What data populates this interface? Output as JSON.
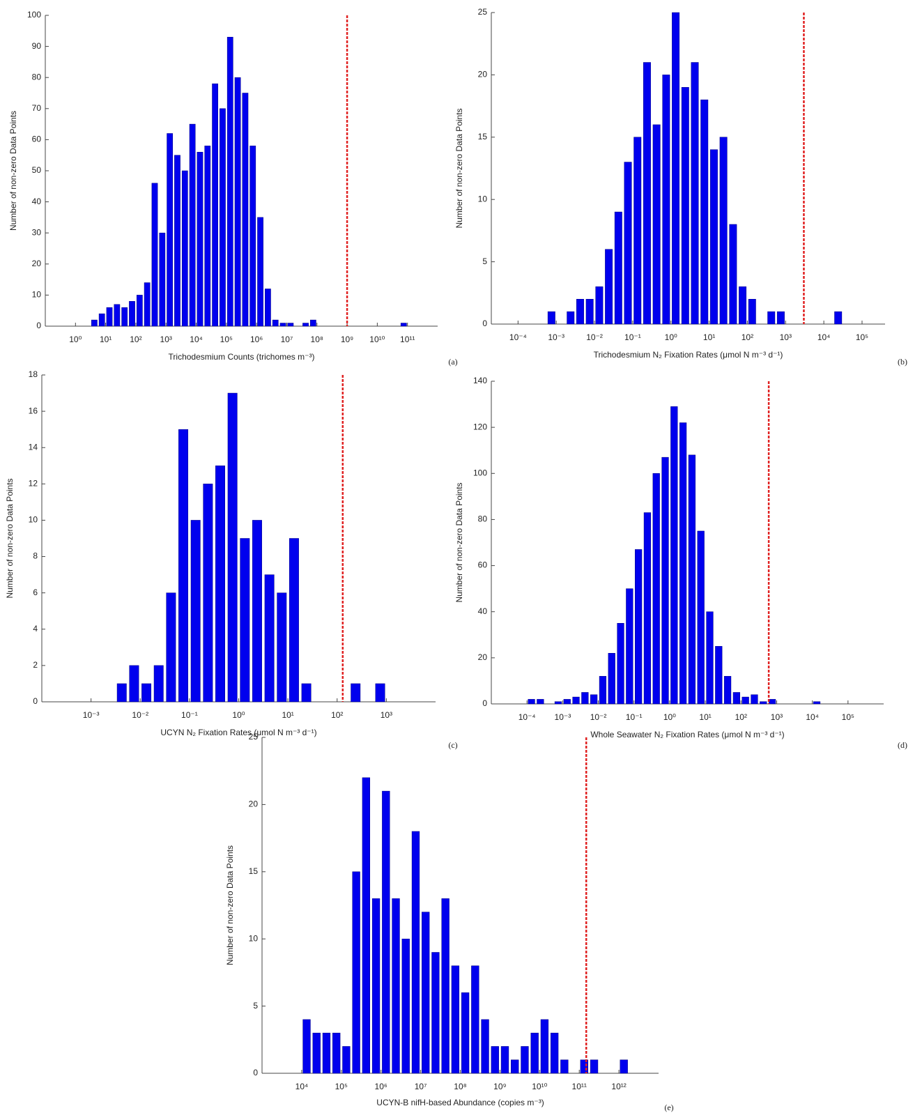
{
  "chart_data": [
    {
      "type": "histogram",
      "panel_label": "(a)",
      "xlabel": "Trichodesmium Counts (trichomes m⁻³)",
      "ylabel": "Number of non-zero Data Points",
      "xscale": "log",
      "color": "#0000ee",
      "xlim": [
        0.1,
        1000000000000.0
      ],
      "ylim": [
        0,
        100
      ],
      "xticks": [
        {
          "value": 1,
          "label": "10⁰"
        },
        {
          "value": 10,
          "label": "10¹"
        },
        {
          "value": 100.0,
          "label": "10²"
        },
        {
          "value": 1000.0,
          "label": "10³"
        },
        {
          "value": 10000.0,
          "label": "10⁴"
        },
        {
          "value": 100000.0,
          "label": "10⁵"
        },
        {
          "value": 1000000.0,
          "label": "10⁶"
        },
        {
          "value": 10000000.0,
          "label": "10⁷"
        },
        {
          "value": 100000000.0,
          "label": "10⁸"
        },
        {
          "value": 1000000000.0,
          "label": "10⁹"
        },
        {
          "value": 10000000000.0,
          "label": "10¹⁰"
        },
        {
          "value": 100000000000.0,
          "label": "10¹¹"
        }
      ],
      "yticks": [
        0,
        10,
        20,
        30,
        40,
        50,
        60,
        70,
        80,
        90,
        100
      ],
      "vline": {
        "x": 1000000000.0,
        "color": "#e02020"
      },
      "bins": [
        3.162,
        5.623,
        10.0,
        17.78,
        31.62,
        56.23,
        100.0,
        177.8,
        316.2,
        562.3,
        1000.0,
        1778.0,
        3162.0,
        5623.0,
        10000.0,
        17780.0,
        31620.0,
        56230.0,
        100000.0,
        177800.0,
        316200.0,
        562300.0,
        1000000.0,
        1778000.0,
        3162000.0,
        5623000.0,
        10000000.0,
        17780000.0,
        31620000.0,
        56230000.0,
        100000000.0,
        177800000.0,
        316200000.0,
        562300000.0,
        1000000000.0,
        1778000000.0,
        3162000000.0,
        5623000000.0,
        10000000000.0,
        17780000000.0,
        31620000000.0,
        56230000000.0,
        100000000000.0
      ],
      "values": [
        2,
        4,
        6,
        7,
        6,
        8,
        10,
        14,
        46,
        30,
        62,
        55,
        50,
        65,
        56,
        58,
        78,
        70,
        93,
        80,
        75,
        58,
        35,
        12,
        2,
        1,
        1,
        0,
        1,
        2,
        0,
        0,
        0,
        0,
        0,
        0,
        0,
        0,
        0,
        0,
        0,
        1
      ]
    },
    {
      "type": "histogram",
      "panel_label": "(b)",
      "xlabel": "Trichodesmium N₂ Fixation Rates (μmol N m⁻³ d⁻¹)",
      "ylabel": "Number of non-zero Data Points",
      "xscale": "log",
      "color": "#0000ee",
      "xlim": [
        2e-05,
        400000.0
      ],
      "ylim": [
        0,
        25
      ],
      "xticks": [
        {
          "value": 0.0001,
          "label": "10⁻⁴"
        },
        {
          "value": 0.001,
          "label": "10⁻³"
        },
        {
          "value": 0.01,
          "label": "10⁻²"
        },
        {
          "value": 0.1,
          "label": "10⁻¹"
        },
        {
          "value": 1,
          "label": "10⁰"
        },
        {
          "value": 10,
          "label": "10¹"
        },
        {
          "value": 100.0,
          "label": "10²"
        },
        {
          "value": 1000.0,
          "label": "10³"
        },
        {
          "value": 10000.0,
          "label": "10⁴"
        },
        {
          "value": 100000.0,
          "label": "10⁵"
        }
      ],
      "yticks": [
        0,
        5,
        10,
        15,
        20,
        25
      ],
      "vline": {
        "x": 3000.0,
        "color": "#e02020"
      },
      "bins": [
        0.0003162,
        0.0005623,
        0.001,
        0.001778,
        0.003162,
        0.005623,
        0.01,
        0.01778,
        0.03162,
        0.05623,
        0.1,
        0.1778,
        0.3162,
        0.5623,
        1,
        1.778,
        3.162,
        5.623,
        10.0,
        17.78,
        31.62,
        56.23,
        100.0,
        177.8,
        316.2,
        562.3,
        1000.0,
        1778.0,
        3162.0,
        5623.0,
        10000.0,
        17780.0,
        31620.0
      ],
      "values": [
        0,
        1,
        0,
        1,
        2,
        2,
        3,
        6,
        9,
        13,
        15,
        21,
        16,
        20,
        25,
        19,
        21,
        18,
        14,
        15,
        8,
        3,
        2,
        0,
        1,
        1,
        0,
        0,
        0,
        0,
        0,
        1
      ]
    },
    {
      "type": "histogram",
      "panel_label": "(c)",
      "xlabel": "UCYN N₂ Fixation Rates (μmol N m⁻³ d⁻¹)",
      "ylabel": "Number of non-zero Data Points",
      "xscale": "log",
      "color": "#0000ee",
      "xlim": [
        0.0001,
        10000.0
      ],
      "ylim": [
        0,
        18
      ],
      "xticks": [
        {
          "value": 0.001,
          "label": "10⁻³"
        },
        {
          "value": 0.01,
          "label": "10⁻²"
        },
        {
          "value": 0.1,
          "label": "10⁻¹"
        },
        {
          "value": 1,
          "label": "10⁰"
        },
        {
          "value": 10,
          "label": "10¹"
        },
        {
          "value": 100.0,
          "label": "10²"
        },
        {
          "value": 1000.0,
          "label": "10³"
        }
      ],
      "yticks": [
        0,
        2,
        4,
        6,
        8,
        10,
        12,
        14,
        16,
        18
      ],
      "vline": {
        "x": 130.0,
        "color": "#e02020"
      },
      "bins": [
        0.003162,
        0.005623,
        0.01,
        0.01778,
        0.03162,
        0.05623,
        0.1,
        0.1778,
        0.3162,
        0.5623,
        1,
        1.778,
        3.162,
        5.623,
        10.0,
        17.78,
        31.62,
        56.23,
        100.0,
        177.8,
        316.2,
        562.3,
        1000.0
      ],
      "values": [
        1,
        2,
        1,
        2,
        6,
        15,
        10,
        12,
        13,
        17,
        9,
        10,
        7,
        6,
        9,
        1,
        0,
        0,
        0,
        1,
        0,
        1
      ]
    },
    {
      "type": "histogram",
      "panel_label": "(d)",
      "xlabel": "Whole Seawater N₂ Fixation Rates (μmol N m⁻³ d⁻¹)",
      "ylabel": "Number of non-zero Data Points",
      "xscale": "log",
      "color": "#0000ee",
      "xlim": [
        1e-05,
        1000000.0
      ],
      "ylim": [
        0,
        140
      ],
      "xticks": [
        {
          "value": 0.0001,
          "label": "10⁻⁴"
        },
        {
          "value": 0.001,
          "label": "10⁻³"
        },
        {
          "value": 0.01,
          "label": "10⁻²"
        },
        {
          "value": 0.1,
          "label": "10⁻¹"
        },
        {
          "value": 1,
          "label": "10⁰"
        },
        {
          "value": 10,
          "label": "10¹"
        },
        {
          "value": 100.0,
          "label": "10²"
        },
        {
          "value": 1000.0,
          "label": "10³"
        },
        {
          "value": 10000.0,
          "label": "10⁴"
        },
        {
          "value": 100000.0,
          "label": "10⁵"
        }
      ],
      "yticks": [
        0,
        20,
        40,
        60,
        80,
        100,
        120,
        140
      ],
      "vline": {
        "x": 600.0,
        "color": "#e02020"
      },
      "bins": [
        0.0001,
        0.0001778,
        0.0003162,
        0.0005623,
        0.001,
        0.001778,
        0.003162,
        0.005623,
        0.01,
        0.01778,
        0.03162,
        0.05623,
        0.1,
        0.1778,
        0.3162,
        0.5623,
        1,
        1.778,
        3.162,
        5.623,
        10.0,
        17.78,
        31.62,
        56.23,
        100.0,
        177.8,
        316.2,
        562.3,
        1000.0,
        1778.0,
        3162.0,
        5623.0,
        10000.0,
        17780.0
      ],
      "values": [
        2,
        2,
        0,
        1,
        2,
        3,
        5,
        4,
        12,
        22,
        35,
        50,
        67,
        83,
        100,
        107,
        129,
        122,
        108,
        75,
        40,
        25,
        12,
        5,
        3,
        4,
        1,
        2,
        0,
        0,
        0,
        0,
        1
      ]
    },
    {
      "type": "histogram",
      "panel_label": "(e)",
      "xlabel": "UCYN-B nifH-based Abundance (copies m⁻³)",
      "ylabel": "Number of non-zero Data Points",
      "xscale": "log",
      "color": "#0000ee",
      "xlim": [
        1000.0,
        10000000000000.0
      ],
      "ylim": [
        0,
        25
      ],
      "xticks": [
        {
          "value": 10000.0,
          "label": "10⁴"
        },
        {
          "value": 100000.0,
          "label": "10⁵"
        },
        {
          "value": 1000000.0,
          "label": "10⁶"
        },
        {
          "value": 10000000.0,
          "label": "10⁷"
        },
        {
          "value": 100000000.0,
          "label": "10⁸"
        },
        {
          "value": 1000000000.0,
          "label": "10⁹"
        },
        {
          "value": 10000000000.0,
          "label": "10¹⁰"
        },
        {
          "value": 100000000000.0,
          "label": "10¹¹"
        },
        {
          "value": 1000000000000.0,
          "label": "10¹²"
        }
      ],
      "yticks": [
        0,
        5,
        10,
        15,
        20,
        25
      ],
      "vline": {
        "x": 150000000000.0,
        "color": "#e02020"
      },
      "bins": [
        10000.0,
        17780.0,
        31620.0,
        56230.0,
        100000.0,
        177800.0,
        316200.0,
        562300.0,
        1000000.0,
        1778000.0,
        3162000.0,
        5623000.0,
        10000000.0,
        17780000.0,
        31620000.0,
        56230000.0,
        100000000.0,
        177800000.0,
        316200000.0,
        562300000.0,
        1000000000.0,
        1778000000.0,
        3162000000.0,
        5623000000.0,
        10000000000.0,
        17780000000.0,
        31620000000.0,
        56230000000.0,
        100000000000.0,
        177800000000.0,
        316200000000.0,
        562300000000.0,
        1000000000000.0,
        1778000000000.0
      ],
      "values": [
        4,
        3,
        3,
        3,
        2,
        15,
        22,
        13,
        21,
        13,
        10,
        18,
        12,
        9,
        13,
        8,
        6,
        8,
        4,
        2,
        2,
        1,
        2,
        3,
        4,
        3,
        1,
        0,
        1,
        1,
        0,
        0,
        1
      ]
    }
  ]
}
